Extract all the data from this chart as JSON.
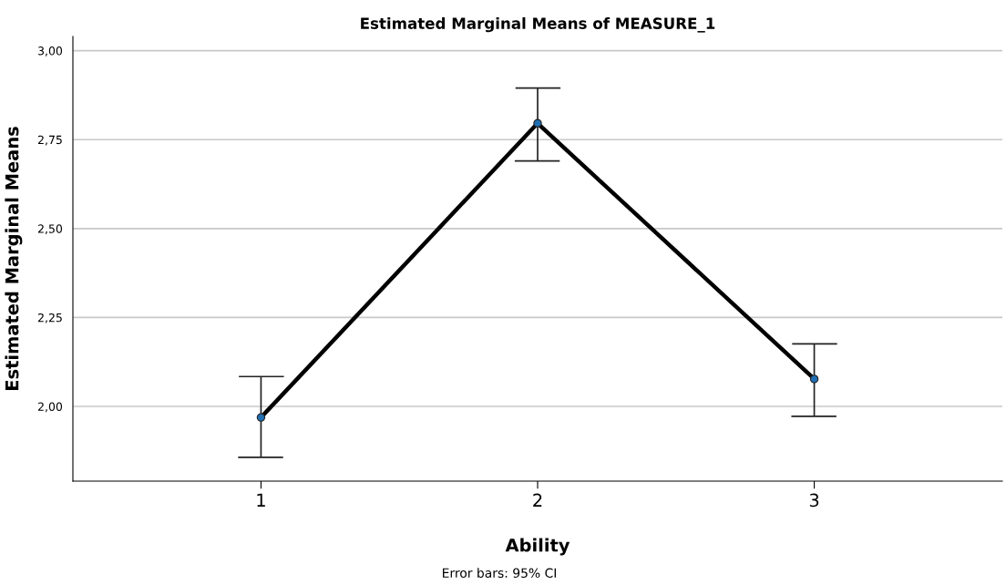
{
  "chart_data": {
    "type": "line",
    "title": "Estimated Marginal Means of MEASURE_1",
    "xlabel": "Ability",
    "ylabel": "Estimated Marginal Means",
    "categories": [
      "1",
      "2",
      "3"
    ],
    "series": [
      {
        "color": "#1f6fb4",
        "values": [
          1.969,
          2.796,
          2.077
        ],
        "errors": [
          [
            1.857,
            2.084
          ],
          [
            2.69,
            2.895
          ],
          [
            1.972,
            2.176
          ]
        ]
      }
    ],
    "ylim": [
      1.79,
      3.04
    ],
    "yticks": [
      {
        "value": 2.0,
        "label": "2,00"
      },
      {
        "value": 2.25,
        "label": "2,25"
      },
      {
        "value": 2.5,
        "label": "2,50"
      },
      {
        "value": 2.75,
        "label": "2,75"
      },
      {
        "value": 3.0,
        "label": "3,00"
      }
    ],
    "grid": "y",
    "marker": "circle",
    "line_style": "solid",
    "annotations": [
      "Error bars: 95% CI"
    ]
  }
}
